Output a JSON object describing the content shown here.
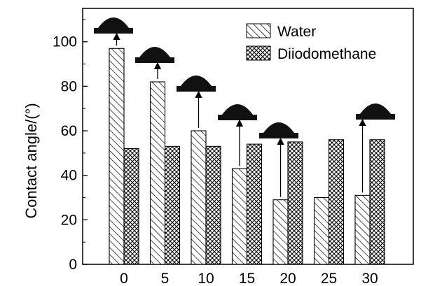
{
  "chart_data": {
    "type": "bar",
    "title": "",
    "xlabel": "",
    "ylabel": "Contact angle/(°)",
    "categories": [
      "0",
      "5",
      "10",
      "15",
      "20",
      "25",
      "30"
    ],
    "series": [
      {
        "name": "Water",
        "pattern": "diagonal-hatch",
        "values": [
          97,
          82,
          60,
          43,
          29,
          30,
          31
        ]
      },
      {
        "name": "Diiodomethane",
        "pattern": "crosshatch",
        "values": [
          52,
          53,
          53,
          54,
          55,
          56,
          56
        ]
      }
    ],
    "ylim": [
      0,
      115
    ],
    "yticks": [
      0,
      20,
      40,
      60,
      80,
      100
    ],
    "grid": false,
    "legend_position": "top-right",
    "annotations": {
      "type": "water-droplet-image-with-arrow",
      "series": "Water",
      "at_categories": [
        "0",
        "5",
        "10",
        "15",
        "20",
        "30"
      ]
    },
    "colors": {
      "bar_fill": "#ffffff",
      "stroke": "#000000",
      "droplet": "#111111"
    }
  }
}
